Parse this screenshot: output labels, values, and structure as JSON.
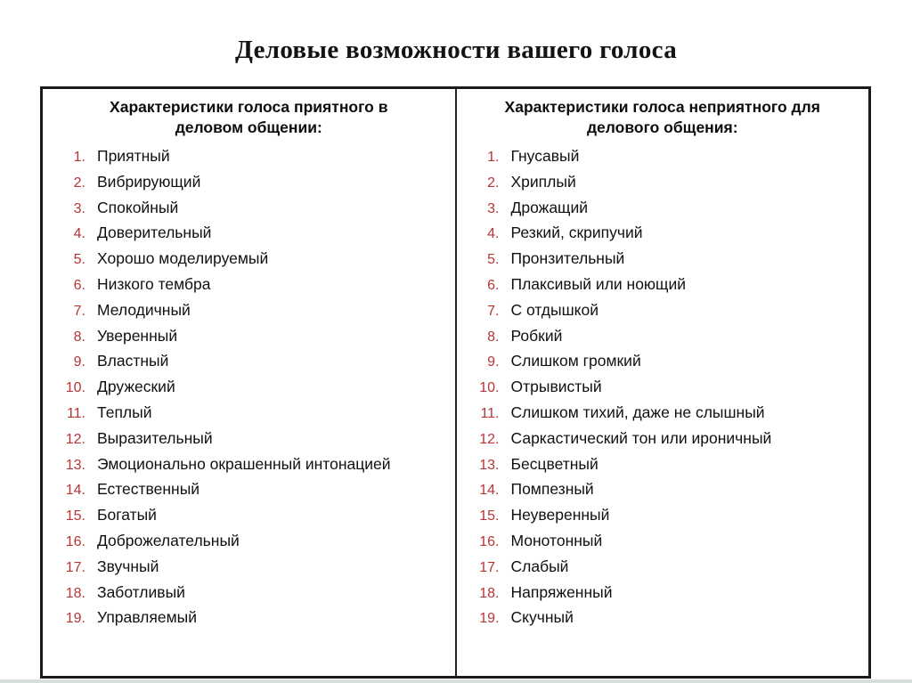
{
  "title": "Деловые возможности вашего голоса",
  "colors": {
    "number": "#b73535",
    "border": "#1a1a1a",
    "text": "#111111",
    "footer_strip": "#d7dddd"
  },
  "columns": [
    {
      "id": "pleasant",
      "header": "Характеристики голоса приятного в деловом общении:",
      "items": [
        {
          "n": "1.",
          "label": "Приятный"
        },
        {
          "n": "2.",
          "label": "Вибрирующий"
        },
        {
          "n": "3.",
          "label": "Спокойный"
        },
        {
          "n": "4.",
          "label": "Доверительный"
        },
        {
          "n": "5.",
          "label": "Хорошо моделируемый"
        },
        {
          "n": "6.",
          "label": "Низкого тембра"
        },
        {
          "n": "7.",
          "label": "Мелодичный"
        },
        {
          "n": "8.",
          "label": "Уверенный"
        },
        {
          "n": "9.",
          "label": "Властный"
        },
        {
          "n": "10.",
          "label": "Дружеский"
        },
        {
          "n": "11.",
          "label": "Теплый"
        },
        {
          "n": "12.",
          "label": "Выразительный"
        },
        {
          "n": "13.",
          "label": "Эмоционально окрашенный интонацией"
        },
        {
          "n": "14.",
          "label": "Естественный"
        },
        {
          "n": "15.",
          "label": "Богатый"
        },
        {
          "n": "16.",
          "label": "Доброжелательный"
        },
        {
          "n": "17.",
          "label": "Звучный"
        },
        {
          "n": "18.",
          "label": "Заботливый"
        },
        {
          "n": "19.",
          "label": "Управляемый"
        }
      ]
    },
    {
      "id": "unpleasant",
      "header": "Характеристики голоса неприятного для делового общения:",
      "items": [
        {
          "n": "1.",
          "label": "Гнусавый"
        },
        {
          "n": "2.",
          "label": "Хриплый"
        },
        {
          "n": "3.",
          "label": "Дрожащий"
        },
        {
          "n": "4.",
          "label": "Резкий, скрипучий"
        },
        {
          "n": "5.",
          "label": "Пронзительный"
        },
        {
          "n": "6.",
          "label": "Плаксивый или ноющий"
        },
        {
          "n": "7.",
          "label": "С отдышкой"
        },
        {
          "n": "8.",
          "label": "Робкий"
        },
        {
          "n": "9.",
          "label": "Слишком громкий"
        },
        {
          "n": "10.",
          "label": "Отрывистый"
        },
        {
          "n": "11.",
          "label": "Слишком тихий, даже не слышный"
        },
        {
          "n": "12.",
          "label": "Саркастический тон или ироничный"
        },
        {
          "n": "13.",
          "label": "Бесцветный"
        },
        {
          "n": "14.",
          "label": "Помпезный"
        },
        {
          "n": "15.",
          "label": "Неуверенный"
        },
        {
          "n": "16.",
          "label": "Монотонный"
        },
        {
          "n": "17.",
          "label": "Слабый"
        },
        {
          "n": "18.",
          "label": "Напряженный"
        },
        {
          "n": "19.",
          "label": "Скучный"
        }
      ]
    }
  ]
}
